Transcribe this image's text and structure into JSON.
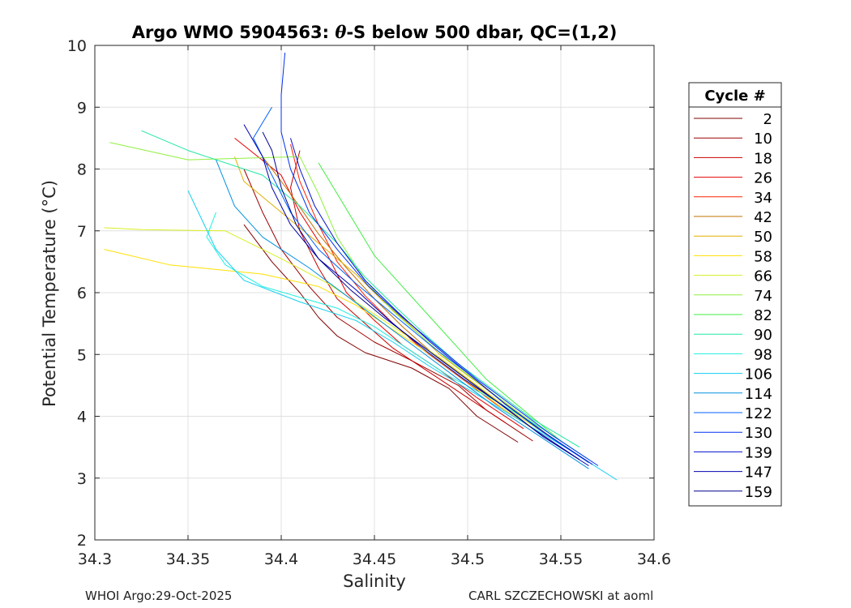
{
  "chart_data": {
    "type": "line",
    "title": "Argo WMO 5904563: θ-S below 500 dbar,  QC=(1,2)",
    "title_parts": {
      "prefix": "Argo WMO 5904563: ",
      "theta": "θ",
      "suffix": "-S below 500 dbar,  QC=(1,2)"
    },
    "xlabel": "Salinity",
    "ylabel": "Potential Temperature (°C)",
    "xlim": [
      34.3,
      34.6
    ],
    "ylim": [
      2,
      10
    ],
    "xticks": [
      34.3,
      34.35,
      34.4,
      34.45,
      34.5,
      34.55,
      34.6
    ],
    "xtick_labels": [
      "34.3",
      "34.35",
      "34.4",
      "34.45",
      "34.5",
      "34.55",
      "34.6"
    ],
    "yticks": [
      2,
      3,
      4,
      5,
      6,
      7,
      8,
      9,
      10
    ],
    "ytick_labels": [
      "2",
      "3",
      "4",
      "5",
      "6",
      "7",
      "8",
      "9",
      "10"
    ],
    "grid": true,
    "legend": {
      "title": "Cycle #",
      "placement": "right",
      "entries": [
        {
          "label": "2",
          "color": "#800000"
        },
        {
          "label": "10",
          "color": "#a00000"
        },
        {
          "label": "18",
          "color": "#c80000"
        },
        {
          "label": "26",
          "color": "#e60000"
        },
        {
          "label": "34",
          "color": "#ff2000"
        },
        {
          "label": "42",
          "color": "#c07000"
        },
        {
          "label": "50",
          "color": "#e0b000"
        },
        {
          "label": "58",
          "color": "#ffe000"
        },
        {
          "label": "66",
          "color": "#d8f020"
        },
        {
          "label": "74",
          "color": "#90f040"
        },
        {
          "label": "82",
          "color": "#40ee40"
        },
        {
          "label": "90",
          "color": "#20e8a0"
        },
        {
          "label": "98",
          "color": "#20f0e0"
        },
        {
          "label": "106",
          "color": "#10d0f0"
        },
        {
          "label": "114",
          "color": "#0090e0"
        },
        {
          "label": "122",
          "color": "#0060ff"
        },
        {
          "label": "130",
          "color": "#0030f0"
        },
        {
          "label": "139",
          "color": "#0010d0"
        },
        {
          "label": "147",
          "color": "#0000b0"
        },
        {
          "label": "159",
          "color": "#000090"
        }
      ]
    },
    "series": [
      {
        "name": "2",
        "color": "#800000",
        "points": [
          [
            34.527,
            3.58
          ],
          [
            34.505,
            4.0
          ],
          [
            34.49,
            4.45
          ],
          [
            34.47,
            4.78
          ],
          [
            34.445,
            5.03
          ],
          [
            34.43,
            5.3
          ],
          [
            34.42,
            5.6
          ],
          [
            34.41,
            6.0
          ],
          [
            34.395,
            6.5
          ],
          [
            34.38,
            7.1
          ]
        ]
      },
      {
        "name": "10",
        "color": "#a00000",
        "points": [
          [
            34.535,
            3.6
          ],
          [
            34.51,
            4.1
          ],
          [
            34.495,
            4.5
          ],
          [
            34.47,
            4.9
          ],
          [
            34.45,
            5.2
          ],
          [
            34.43,
            5.6
          ],
          [
            34.415,
            6.1
          ],
          [
            34.4,
            6.7
          ],
          [
            34.39,
            7.3
          ],
          [
            34.38,
            8.0
          ]
        ]
      },
      {
        "name": "18",
        "color": "#c80000",
        "points": [
          [
            34.52,
            3.9
          ],
          [
            34.5,
            4.3
          ],
          [
            34.48,
            4.7
          ],
          [
            34.46,
            5.1
          ],
          [
            34.445,
            5.5
          ],
          [
            34.43,
            5.9
          ],
          [
            34.42,
            6.4
          ],
          [
            34.41,
            7.0
          ],
          [
            34.405,
            7.7
          ],
          [
            34.41,
            8.3
          ]
        ]
      },
      {
        "name": "26",
        "color": "#e60000",
        "points": [
          [
            34.53,
            3.8
          ],
          [
            34.505,
            4.3
          ],
          [
            34.485,
            4.75
          ],
          [
            34.465,
            5.15
          ],
          [
            34.45,
            5.55
          ],
          [
            34.435,
            6.0
          ],
          [
            34.425,
            6.6
          ],
          [
            34.41,
            7.3
          ],
          [
            34.4,
            7.9
          ],
          [
            34.375,
            8.5
          ]
        ]
      },
      {
        "name": "34",
        "color": "#ff2000",
        "points": [
          [
            34.54,
            3.7
          ],
          [
            34.515,
            4.2
          ],
          [
            34.495,
            4.65
          ],
          [
            34.475,
            5.1
          ],
          [
            34.46,
            5.5
          ],
          [
            34.445,
            5.95
          ],
          [
            34.43,
            6.5
          ],
          [
            34.42,
            7.1
          ],
          [
            34.41,
            7.8
          ],
          [
            34.405,
            8.4
          ]
        ]
      },
      {
        "name": "42",
        "color": "#c07000",
        "points": [
          [
            34.545,
            3.65
          ],
          [
            34.52,
            4.15
          ],
          [
            34.5,
            4.6
          ],
          [
            34.48,
            5.05
          ],
          [
            34.465,
            5.45
          ],
          [
            34.45,
            5.9
          ],
          [
            34.435,
            6.4
          ],
          [
            34.42,
            6.95
          ],
          [
            34.405,
            7.6
          ],
          [
            34.39,
            8.2
          ]
        ]
      },
      {
        "name": "50",
        "color": "#e0b000",
        "points": [
          [
            34.55,
            3.55
          ],
          [
            34.525,
            4.1
          ],
          [
            34.505,
            4.55
          ],
          [
            34.485,
            5.0
          ],
          [
            34.47,
            5.45
          ],
          [
            34.455,
            5.85
          ],
          [
            34.44,
            6.3
          ],
          [
            34.42,
            6.8
          ],
          [
            34.4,
            7.3
          ],
          [
            34.38,
            7.8
          ],
          [
            34.375,
            8.2
          ]
        ]
      },
      {
        "name": "58",
        "color": "#ffe000",
        "points": [
          [
            34.545,
            3.6
          ],
          [
            34.52,
            4.1
          ],
          [
            34.5,
            4.55
          ],
          [
            34.48,
            5.0
          ],
          [
            34.46,
            5.4
          ],
          [
            34.44,
            5.8
          ],
          [
            34.42,
            6.1
          ],
          [
            34.39,
            6.3
          ],
          [
            34.34,
            6.45
          ],
          [
            34.305,
            6.7
          ]
        ]
      },
      {
        "name": "66",
        "color": "#d8f020",
        "points": [
          [
            34.55,
            3.55
          ],
          [
            34.525,
            4.05
          ],
          [
            34.505,
            4.5
          ],
          [
            34.485,
            4.95
          ],
          [
            34.465,
            5.35
          ],
          [
            34.445,
            5.75
          ],
          [
            34.425,
            6.15
          ],
          [
            34.4,
            6.55
          ],
          [
            34.37,
            7.0
          ],
          [
            34.325,
            7.02
          ],
          [
            34.305,
            7.05
          ]
        ]
      },
      {
        "name": "74",
        "color": "#90f040",
        "points": [
          [
            34.555,
            3.5
          ],
          [
            34.53,
            4.0
          ],
          [
            34.51,
            4.45
          ],
          [
            34.49,
            4.9
          ],
          [
            34.475,
            5.3
          ],
          [
            34.46,
            5.7
          ],
          [
            34.445,
            6.2
          ],
          [
            34.43,
            6.9
          ],
          [
            34.42,
            7.6
          ],
          [
            34.41,
            8.2
          ],
          [
            34.35,
            8.15
          ],
          [
            34.308,
            8.43
          ]
        ]
      },
      {
        "name": "82",
        "color": "#40ee40",
        "points": [
          [
            34.55,
            3.6
          ],
          [
            34.53,
            4.1
          ],
          [
            34.51,
            4.6
          ],
          [
            34.495,
            5.1
          ],
          [
            34.48,
            5.6
          ],
          [
            34.465,
            6.1
          ],
          [
            34.45,
            6.6
          ],
          [
            34.44,
            7.1
          ],
          [
            34.43,
            7.6
          ],
          [
            34.42,
            8.1
          ]
        ]
      },
      {
        "name": "90",
        "color": "#20e8a0",
        "points": [
          [
            34.56,
            3.5
          ],
          [
            34.535,
            3.95
          ],
          [
            34.515,
            4.4
          ],
          [
            34.495,
            4.85
          ],
          [
            34.478,
            5.3
          ],
          [
            34.462,
            5.75
          ],
          [
            34.445,
            6.25
          ],
          [
            34.43,
            6.8
          ],
          [
            34.41,
            7.4
          ],
          [
            34.39,
            7.9
          ],
          [
            34.35,
            8.3
          ],
          [
            34.325,
            8.62
          ]
        ]
      },
      {
        "name": "98",
        "color": "#20f0e0",
        "points": [
          [
            34.565,
            3.3
          ],
          [
            34.54,
            3.8
          ],
          [
            34.515,
            4.25
          ],
          [
            34.49,
            4.65
          ],
          [
            34.47,
            5.05
          ],
          [
            34.45,
            5.45
          ],
          [
            34.43,
            5.75
          ],
          [
            34.39,
            6.1
          ],
          [
            34.37,
            6.45
          ],
          [
            34.36,
            6.9
          ],
          [
            34.365,
            7.3
          ]
        ]
      },
      {
        "name": "106",
        "color": "#10d0f0",
        "points": [
          [
            34.58,
            2.97
          ],
          [
            34.555,
            3.45
          ],
          [
            34.53,
            3.9
          ],
          [
            34.505,
            4.35
          ],
          [
            34.48,
            4.8
          ],
          [
            34.46,
            5.2
          ],
          [
            34.44,
            5.55
          ],
          [
            34.41,
            5.85
          ],
          [
            34.38,
            6.2
          ],
          [
            34.365,
            6.7
          ],
          [
            34.35,
            7.65
          ]
        ]
      },
      {
        "name": "114",
        "color": "#0090e0",
        "points": [
          [
            34.565,
            3.15
          ],
          [
            34.54,
            3.65
          ],
          [
            34.515,
            4.15
          ],
          [
            34.495,
            4.6
          ],
          [
            34.475,
            5.05
          ],
          [
            34.455,
            5.5
          ],
          [
            34.435,
            5.95
          ],
          [
            34.415,
            6.4
          ],
          [
            34.39,
            6.9
          ],
          [
            34.375,
            7.4
          ],
          [
            34.365,
            8.15
          ]
        ]
      },
      {
        "name": "122",
        "color": "#0060ff",
        "points": [
          [
            34.565,
            3.25
          ],
          [
            34.54,
            3.75
          ],
          [
            34.52,
            4.2
          ],
          [
            34.5,
            4.7
          ],
          [
            34.48,
            5.15
          ],
          [
            34.46,
            5.65
          ],
          [
            34.44,
            6.15
          ],
          [
            34.42,
            6.7
          ],
          [
            34.405,
            7.3
          ],
          [
            34.395,
            7.9
          ],
          [
            34.385,
            8.5
          ],
          [
            34.395,
            9.0
          ]
        ]
      },
      {
        "name": "130",
        "color": "#0030f0",
        "points": [
          [
            34.57,
            3.2
          ],
          [
            34.545,
            3.7
          ],
          [
            34.525,
            4.15
          ],
          [
            34.505,
            4.6
          ],
          [
            34.485,
            5.1
          ],
          [
            34.465,
            5.6
          ],
          [
            34.447,
            6.1
          ],
          [
            34.43,
            6.7
          ],
          [
            34.415,
            7.3
          ],
          [
            34.405,
            8.0
          ],
          [
            34.4,
            8.6
          ],
          [
            34.4,
            9.2
          ],
          [
            34.402,
            9.88
          ]
        ]
      },
      {
        "name": "139",
        "color": "#0010d0",
        "points": [
          [
            34.567,
            3.22
          ],
          [
            34.542,
            3.72
          ],
          [
            34.52,
            4.2
          ],
          [
            34.5,
            4.7
          ],
          [
            34.48,
            5.2
          ],
          [
            34.462,
            5.7
          ],
          [
            34.445,
            6.2
          ],
          [
            34.43,
            6.8
          ],
          [
            34.418,
            7.4
          ],
          [
            34.41,
            8.0
          ],
          [
            34.405,
            8.5
          ]
        ]
      },
      {
        "name": "147",
        "color": "#0000b0",
        "points": [
          [
            34.565,
            3.2
          ],
          [
            34.54,
            3.68
          ],
          [
            34.52,
            4.15
          ],
          [
            34.498,
            4.6
          ],
          [
            34.478,
            5.05
          ],
          [
            34.458,
            5.55
          ],
          [
            34.44,
            6.05
          ],
          [
            34.42,
            6.55
          ],
          [
            34.405,
            7.1
          ],
          [
            34.395,
            7.7
          ],
          [
            34.39,
            8.2
          ],
          [
            34.38,
            8.72
          ]
        ]
      },
      {
        "name": "159",
        "color": "#000090",
        "points": [
          [
            34.56,
            3.3
          ],
          [
            34.535,
            3.8
          ],
          [
            34.515,
            4.25
          ],
          [
            34.495,
            4.7
          ],
          [
            34.475,
            5.15
          ],
          [
            34.455,
            5.6
          ],
          [
            34.437,
            6.05
          ],
          [
            34.42,
            6.55
          ],
          [
            34.408,
            7.1
          ],
          [
            34.4,
            7.7
          ],
          [
            34.395,
            8.3
          ],
          [
            34.39,
            8.6
          ]
        ]
      }
    ]
  },
  "footer": {
    "left": "WHOI Argo:29-Oct-2025",
    "right": "CARL SZCZECHOWSKI at aoml"
  }
}
